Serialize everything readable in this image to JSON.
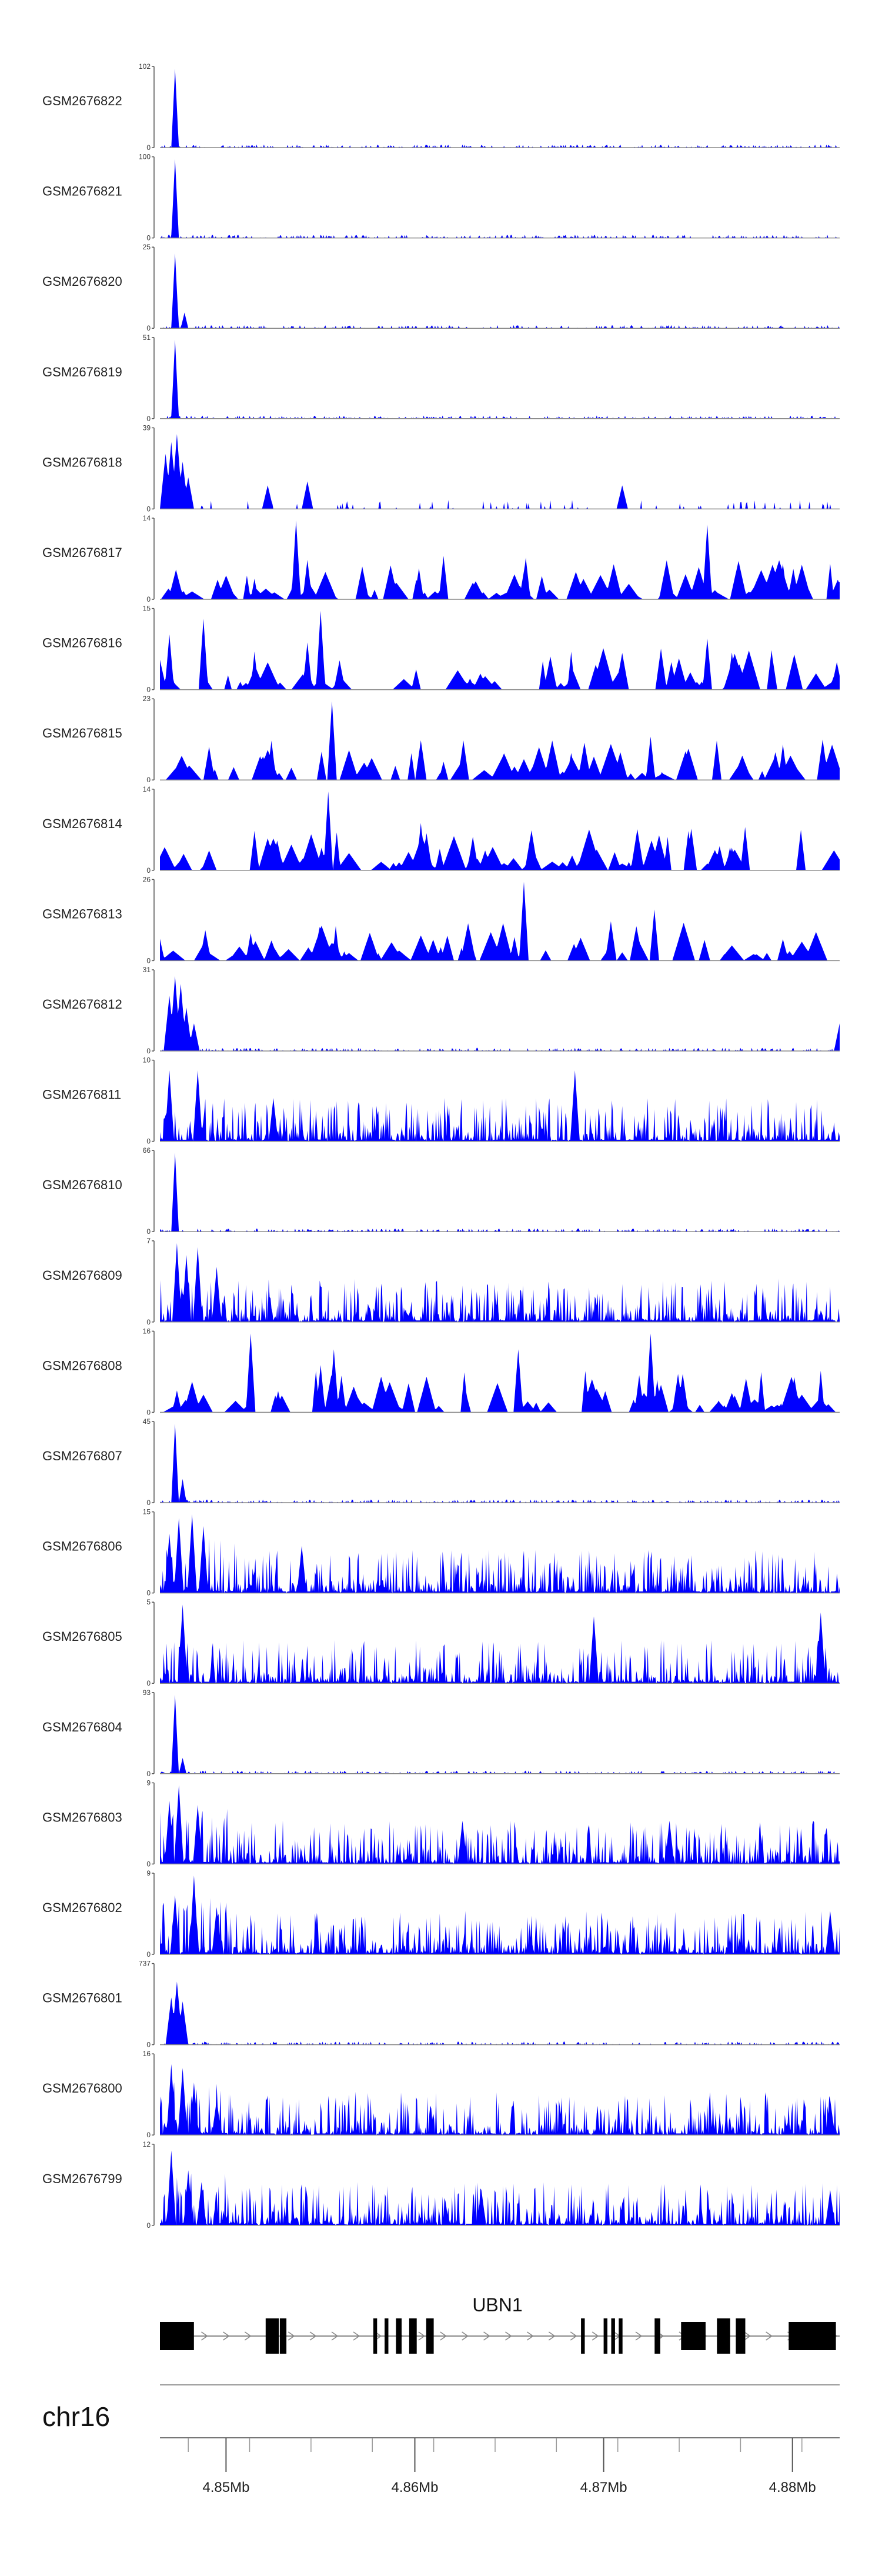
{
  "chart_data": {
    "type": "area",
    "title": "",
    "fill_color": "#0000ff",
    "gene": {
      "name": "UBN1",
      "exon_color": "#000000",
      "intron_color": "#888888"
    },
    "chromosome": "chr16",
    "x_axis": {
      "range_mb": [
        4.8465,
        4.8825
      ],
      "ticks": [
        {
          "value": 4.85,
          "label": "4.85Mb"
        },
        {
          "value": 4.86,
          "label": "4.86Mb"
        },
        {
          "value": 4.87,
          "label": "4.87Mb"
        },
        {
          "value": 4.88,
          "label": "4.88Mb"
        }
      ]
    },
    "tracks": [
      {
        "name": "GSM2676822",
        "ymax": 102,
        "ymax_label": "102",
        "ymin_label": "0",
        "pattern": "sharp",
        "peaks": [
          [
            0.8,
            1.0
          ]
        ]
      },
      {
        "name": "GSM2676821",
        "ymax": 100,
        "ymax_label": "100",
        "ymin_label": "0",
        "pattern": "sharp",
        "peaks": [
          [
            0.8,
            1.0
          ]
        ]
      },
      {
        "name": "GSM2676820",
        "ymax": 25,
        "ymax_label": "25",
        "ymin_label": "0",
        "pattern": "sharp",
        "peaks": [
          [
            0.8,
            0.95
          ],
          [
            1.3,
            0.2
          ]
        ]
      },
      {
        "name": "GSM2676819",
        "ymax": 51,
        "ymax_label": "51",
        "ymin_label": "0",
        "pattern": "sharp",
        "peaks": [
          [
            0.8,
            1.0
          ]
        ]
      },
      {
        "name": "GSM2676818",
        "ymax": 39,
        "ymax_label": "39",
        "ymin_label": "0",
        "pattern": "sparse-broad",
        "peaks": [
          [
            0.3,
            0.7
          ],
          [
            0.6,
            0.85
          ],
          [
            0.9,
            0.95
          ],
          [
            1.2,
            0.6
          ],
          [
            1.5,
            0.4
          ],
          [
            5.7,
            0.3
          ],
          [
            7.8,
            0.35
          ],
          [
            24.5,
            0.3
          ]
        ]
      },
      {
        "name": "GSM2676817",
        "ymax": 14,
        "ymax_label": "14",
        "ymin_label": "0",
        "pattern": "spiky-sparse",
        "peaks": [
          [
            7.2,
            1.0
          ],
          [
            29.0,
            0.95
          ],
          [
            15.0,
            0.55
          ],
          [
            7.8,
            0.5
          ],
          [
            33.0,
            0.45
          ]
        ]
      },
      {
        "name": "GSM2676816",
        "ymax": 15,
        "ymax_label": "15",
        "ymin_label": "0",
        "pattern": "spiky-sparse",
        "peaks": [
          [
            0.5,
            0.7
          ],
          [
            2.3,
            0.9
          ],
          [
            8.5,
            1.0
          ],
          [
            7.8,
            0.6
          ],
          [
            29.0,
            0.65
          ]
        ]
      },
      {
        "name": "GSM2676815",
        "ymax": 23,
        "ymax_label": "23",
        "ymin_label": "0",
        "pattern": "spiky-sparse",
        "peaks": [
          [
            9.1,
            1.0
          ],
          [
            26.0,
            0.55
          ],
          [
            29.5,
            0.5
          ],
          [
            33.0,
            0.45
          ]
        ]
      },
      {
        "name": "GSM2676814",
        "ymax": 14,
        "ymax_label": "14",
        "ymin_label": "0",
        "pattern": "spiky-sparse",
        "peaks": [
          [
            8.9,
            1.0
          ],
          [
            31.0,
            0.55
          ],
          [
            13.8,
            0.6
          ],
          [
            5.0,
            0.5
          ]
        ]
      },
      {
        "name": "GSM2676813",
        "ymax": 26,
        "ymax_label": "26",
        "ymin_label": "0",
        "pattern": "spiky-sparse",
        "peaks": [
          [
            19.3,
            1.0
          ],
          [
            26.2,
            0.65
          ],
          [
            18.8,
            0.3
          ]
        ]
      },
      {
        "name": "GSM2676812",
        "ymax": 31,
        "ymax_label": "31",
        "ymin_label": "0",
        "pattern": "sharp-broad",
        "peaks": [
          [
            0.5,
            0.7
          ],
          [
            0.8,
            0.95
          ],
          [
            1.1,
            0.85
          ],
          [
            1.4,
            0.55
          ],
          [
            1.8,
            0.35
          ],
          [
            36.0,
            0.35
          ]
        ]
      },
      {
        "name": "GSM2676811",
        "ymax": 10,
        "ymax_label": "10",
        "ymin_label": "0",
        "pattern": "dense",
        "peaks": [
          [
            0.5,
            0.9
          ],
          [
            2.0,
            0.9
          ],
          [
            22.0,
            0.9
          ],
          [
            6.0,
            0.55
          ]
        ]
      },
      {
        "name": "GSM2676810",
        "ymax": 66,
        "ymax_label": "66",
        "ymin_label": "0",
        "pattern": "sharp",
        "peaks": [
          [
            0.8,
            1.0
          ]
        ]
      },
      {
        "name": "GSM2676809",
        "ymax": 7,
        "ymax_label": "7",
        "ymin_label": "0",
        "pattern": "dense",
        "peaks": [
          [
            0.9,
            1.0
          ],
          [
            2.0,
            0.95
          ],
          [
            1.4,
            0.85
          ],
          [
            3.0,
            0.7
          ]
        ]
      },
      {
        "name": "GSM2676808",
        "ymax": 16,
        "ymax_label": "16",
        "ymin_label": "0",
        "pattern": "spiky-sparse",
        "peaks": [
          [
            4.8,
            1.0
          ],
          [
            26.0,
            1.0
          ],
          [
            19.0,
            0.8
          ],
          [
            9.2,
            0.8
          ],
          [
            8.5,
            0.6
          ]
        ]
      },
      {
        "name": "GSM2676807",
        "ymax": 45,
        "ymax_label": "45",
        "ymin_label": "0",
        "pattern": "sharp",
        "peaks": [
          [
            0.8,
            1.0
          ],
          [
            1.2,
            0.3
          ]
        ]
      },
      {
        "name": "GSM2676806",
        "ymax": 15,
        "ymax_label": "15",
        "ymin_label": "0",
        "pattern": "dense-left",
        "peaks": [
          [
            0.5,
            0.75
          ],
          [
            1.0,
            0.95
          ],
          [
            1.7,
            1.0
          ],
          [
            2.3,
            0.85
          ],
          [
            7.5,
            0.6
          ]
        ]
      },
      {
        "name": "GSM2676805",
        "ymax": 5,
        "ymax_label": "5",
        "ymin_label": "0",
        "pattern": "dense",
        "peaks": [
          [
            1.2,
            1.0
          ],
          [
            35.0,
            0.9
          ],
          [
            23.0,
            0.85
          ]
        ]
      },
      {
        "name": "GSM2676804",
        "ymax": 93,
        "ymax_label": "93",
        "ymin_label": "0",
        "pattern": "sharp",
        "peaks": [
          [
            0.8,
            1.0
          ],
          [
            1.2,
            0.2
          ]
        ]
      },
      {
        "name": "GSM2676803",
        "ymax": 9,
        "ymax_label": "9",
        "ymin_label": "0",
        "pattern": "dense-left",
        "peaks": [
          [
            1.0,
            1.0
          ],
          [
            0.5,
            0.8
          ],
          [
            2.0,
            0.75
          ],
          [
            16.0,
            0.55
          ],
          [
            27.0,
            0.55
          ]
        ]
      },
      {
        "name": "GSM2676802",
        "ymax": 9,
        "ymax_label": "9",
        "ymin_label": "0",
        "pattern": "dense-left",
        "peaks": [
          [
            1.8,
            1.0
          ],
          [
            0.8,
            0.75
          ],
          [
            3.0,
            0.6
          ],
          [
            35.5,
            0.55
          ]
        ]
      },
      {
        "name": "GSM2676801",
        "ymax": 737,
        "ymax_label": "737",
        "ymin_label": "0",
        "pattern": "sharp-broad",
        "peaks": [
          [
            0.6,
            0.6
          ],
          [
            0.9,
            0.8
          ],
          [
            1.2,
            0.55
          ]
        ]
      },
      {
        "name": "GSM2676800",
        "ymax": 16,
        "ymax_label": "16",
        "ymin_label": "0",
        "pattern": "dense-left",
        "peaks": [
          [
            0.6,
            0.9
          ],
          [
            1.2,
            0.85
          ],
          [
            1.8,
            0.65
          ],
          [
            3.0,
            0.45
          ],
          [
            35.5,
            0.45
          ]
        ]
      },
      {
        "name": "GSM2676799",
        "ymax": 12,
        "ymax_label": "12",
        "ymin_label": "0",
        "pattern": "dense-left",
        "peaks": [
          [
            0.6,
            0.95
          ],
          [
            1.5,
            0.7
          ],
          [
            2.2,
            0.55
          ],
          [
            17.0,
            0.45
          ],
          [
            35.5,
            0.45
          ]
        ]
      }
    ],
    "gene_model": {
      "exons_kb": [
        [
          0.0,
          1.8
        ],
        [
          5.6,
          6.3
        ],
        [
          6.35,
          6.7
        ],
        [
          11.3,
          11.5
        ],
        [
          11.9,
          12.1
        ],
        [
          12.5,
          12.8
        ],
        [
          13.2,
          13.6
        ],
        [
          14.1,
          14.5
        ],
        [
          22.3,
          22.5
        ],
        [
          23.5,
          23.7
        ],
        [
          23.9,
          24.1
        ],
        [
          24.3,
          24.5
        ],
        [
          26.2,
          26.5
        ],
        [
          27.6,
          28.9
        ],
        [
          29.5,
          30.2
        ],
        [
          30.5,
          31.0
        ],
        [
          33.3,
          35.8
        ]
      ]
    }
  }
}
